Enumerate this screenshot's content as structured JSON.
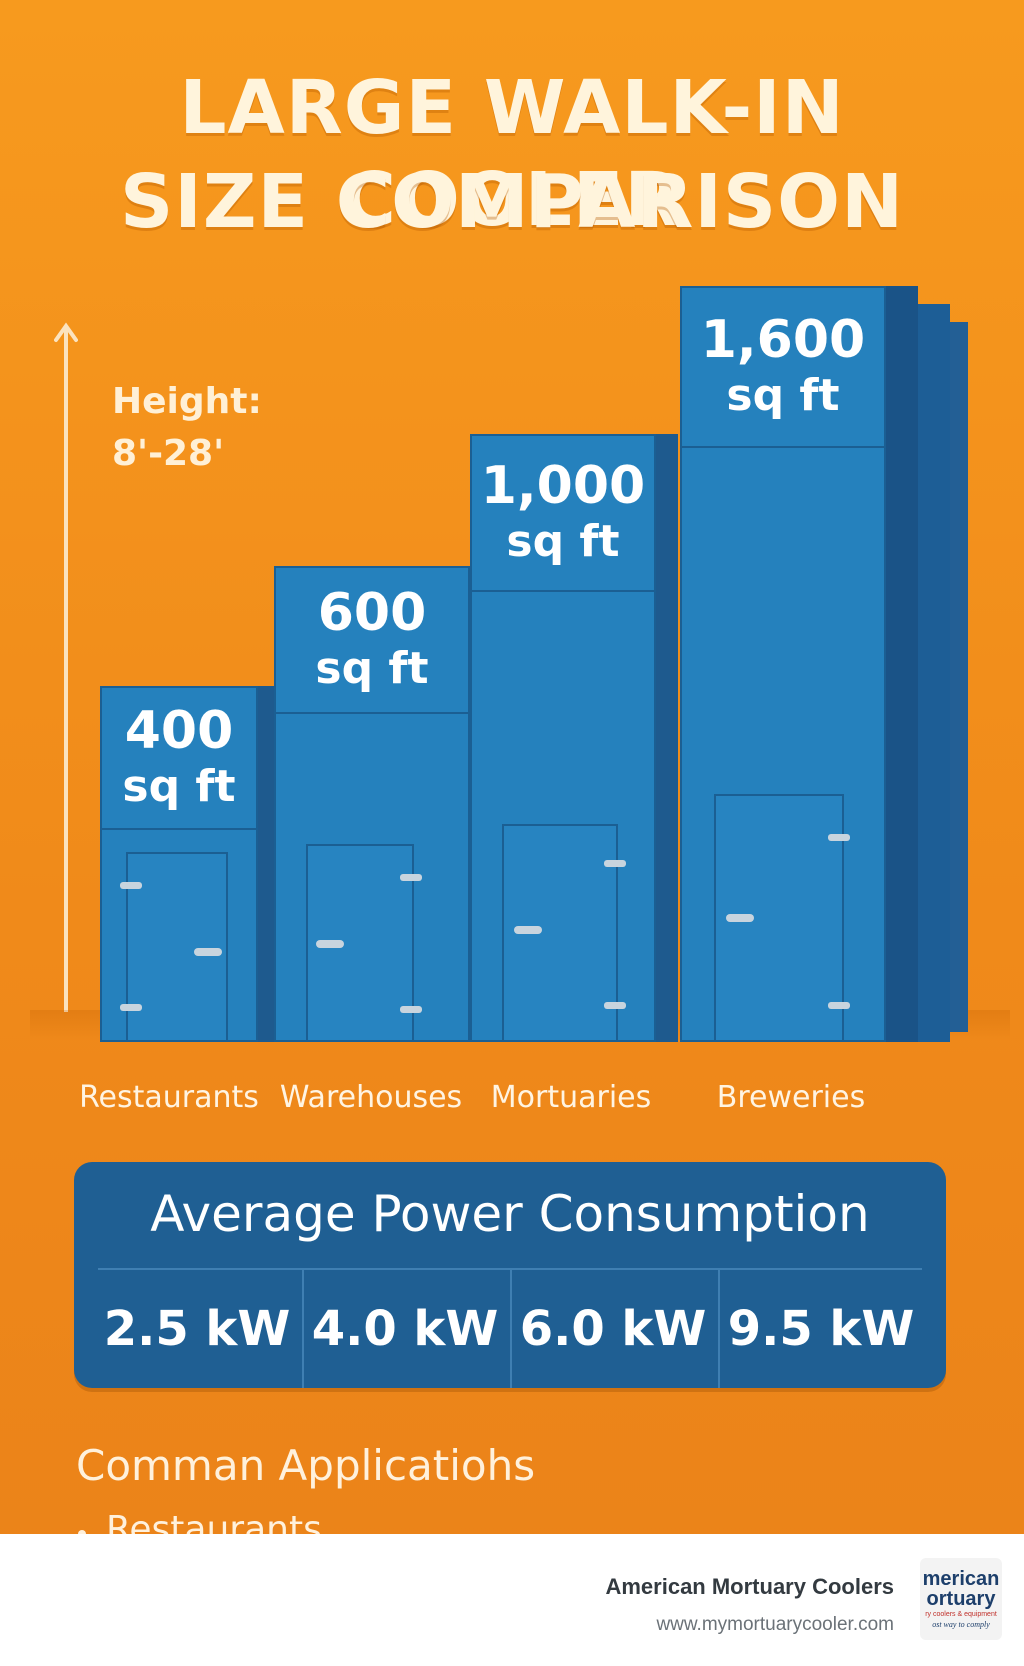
{
  "title": {
    "line1": "LARGE WALK-IN COOLER",
    "line2": "SIZE COMPARISON"
  },
  "height_note": {
    "label": "Height:",
    "range": "8'-28'"
  },
  "coolers": [
    {
      "size": "400",
      "unit": "sq ft",
      "category": "Restaurants"
    },
    {
      "size": "600",
      "unit": "sq ft",
      "category": "Warehouses"
    },
    {
      "size": "1,000",
      "unit": "sq ft",
      "category": "Mortuaries"
    },
    {
      "size": "1,600",
      "unit": "sq ft",
      "category": "Breweries"
    }
  ],
  "power": {
    "title": "Average Power Consumption",
    "values": [
      "2.5 kW",
      "4.0 kW",
      "6.0 kW",
      "9.5 kW"
    ]
  },
  "applications": {
    "title": "Comman Applicatiohs",
    "items": [
      "Restaurants"
    ]
  },
  "footer": {
    "company": "American Mortuary Coolers",
    "url": "www.mymortuarycooler.com",
    "logo_line1": "merican",
    "logo_line2": "ortuary",
    "logo_line3": "ry coolers & equipment",
    "logo_line4": "ost way to comply"
  },
  "colors": {
    "background": "#f0901b",
    "cooler_blue": "#2581bd",
    "panel_blue": "#1f5f93",
    "title_text": "#fff4dc"
  }
}
